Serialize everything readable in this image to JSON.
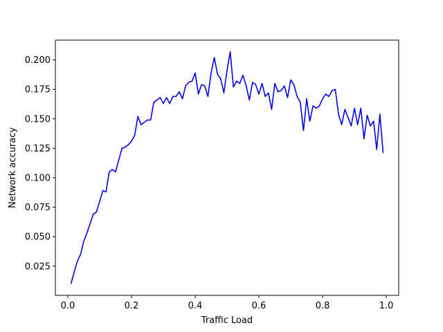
{
  "chart_data": {
    "type": "line",
    "title": "",
    "xlabel": "Traffic Load",
    "ylabel": "Network accuracy",
    "xlim": [
      -0.039,
      1.039
    ],
    "ylim": [
      0.0002,
      0.2168
    ],
    "xticks": [
      0.0,
      0.2,
      0.4,
      0.6,
      0.8,
      1.0
    ],
    "xtick_labels": [
      "0.0",
      "0.2",
      "0.4",
      "0.6",
      "0.8",
      "1.0"
    ],
    "yticks": [
      0.025,
      0.05,
      0.075,
      0.1,
      0.125,
      0.15,
      0.175,
      0.2
    ],
    "ytick_labels": [
      "0.025",
      "0.050",
      "0.075",
      "0.100",
      "0.125",
      "0.150",
      "0.175",
      "0.200"
    ],
    "grid": false,
    "legend": "none",
    "series": [
      {
        "color": "#0000ee",
        "x": [
          0.01,
          0.02,
          0.03,
          0.04,
          0.05,
          0.06,
          0.07,
          0.08,
          0.09,
          0.1,
          0.11,
          0.12,
          0.13,
          0.14,
          0.15,
          0.16,
          0.17,
          0.18,
          0.19,
          0.2,
          0.21,
          0.22,
          0.23,
          0.24,
          0.25,
          0.26,
          0.27,
          0.28,
          0.29,
          0.3,
          0.31,
          0.32,
          0.33,
          0.34,
          0.35,
          0.36,
          0.37,
          0.38,
          0.39,
          0.4,
          0.41,
          0.42,
          0.43,
          0.44,
          0.45,
          0.46,
          0.47,
          0.48,
          0.49,
          0.5,
          0.51,
          0.52,
          0.53,
          0.54,
          0.55,
          0.56,
          0.57,
          0.58,
          0.59,
          0.6,
          0.61,
          0.62,
          0.63,
          0.64,
          0.65,
          0.66,
          0.67,
          0.68,
          0.69,
          0.7,
          0.71,
          0.72,
          0.73,
          0.74,
          0.75,
          0.76,
          0.77,
          0.78,
          0.79,
          0.8,
          0.81,
          0.82,
          0.83,
          0.84,
          0.85,
          0.86,
          0.87,
          0.88,
          0.89,
          0.9,
          0.91,
          0.92,
          0.93,
          0.94,
          0.95,
          0.96,
          0.97,
          0.98,
          0.99
        ],
        "values": [
          0.01,
          0.02,
          0.029,
          0.035,
          0.046,
          0.053,
          0.061,
          0.069,
          0.071,
          0.08,
          0.089,
          0.088,
          0.105,
          0.107,
          0.105,
          0.115,
          0.125,
          0.126,
          0.128,
          0.131,
          0.136,
          0.152,
          0.145,
          0.147,
          0.149,
          0.149,
          0.164,
          0.166,
          0.168,
          0.163,
          0.168,
          0.163,
          0.169,
          0.169,
          0.173,
          0.167,
          0.178,
          0.181,
          0.182,
          0.189,
          0.171,
          0.179,
          0.178,
          0.169,
          0.189,
          0.202,
          0.188,
          0.184,
          0.172,
          0.191,
          0.207,
          0.177,
          0.182,
          0.18,
          0.187,
          0.178,
          0.166,
          0.181,
          0.179,
          0.171,
          0.18,
          0.169,
          0.172,
          0.158,
          0.18,
          0.173,
          0.174,
          0.178,
          0.168,
          0.183,
          0.179,
          0.169,
          0.164,
          0.14,
          0.167,
          0.148,
          0.161,
          0.159,
          0.161,
          0.167,
          0.171,
          0.169,
          0.174,
          0.175,
          0.154,
          0.145,
          0.158,
          0.151,
          0.144,
          0.159,
          0.145,
          0.159,
          0.133,
          0.153,
          0.144,
          0.148,
          0.124,
          0.154,
          0.121
        ]
      }
    ]
  }
}
